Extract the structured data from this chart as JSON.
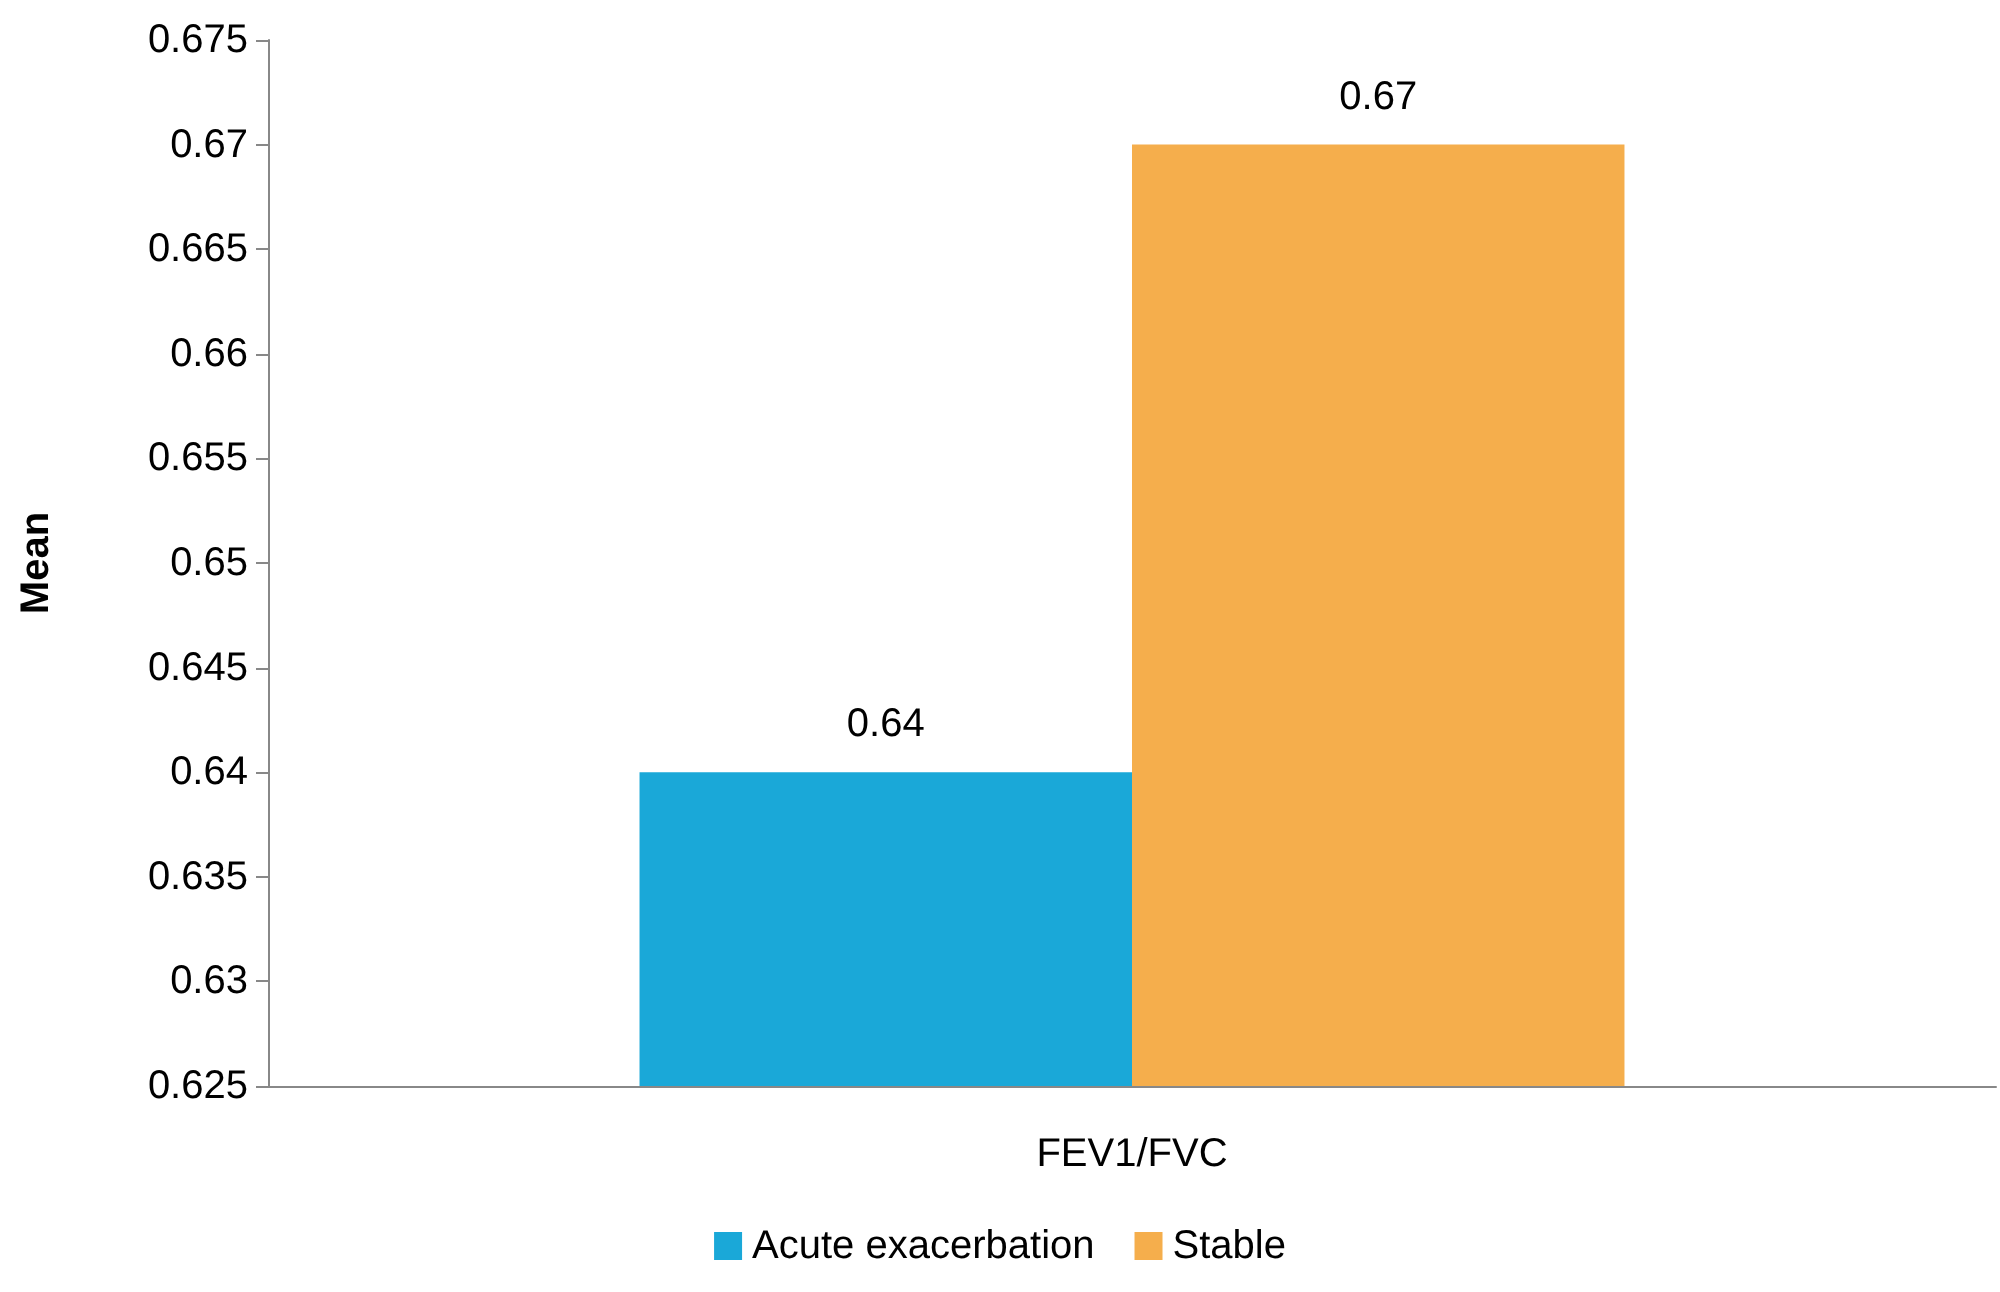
{
  "chart_data": {
    "type": "bar",
    "ylabel": "Mean",
    "categories": [
      "FEV1/FVC"
    ],
    "series": [
      {
        "name": "Acute exacerbation",
        "color": "#1aa8d8",
        "values": [
          0.64
        ]
      },
      {
        "name": "Stable",
        "color": "#f5ae4c",
        "values": [
          0.67
        ]
      }
    ],
    "ylim": [
      0.625,
      0.675
    ],
    "yticks": [
      0.625,
      0.63,
      0.635,
      0.64,
      0.645,
      0.65,
      0.655,
      0.66,
      0.665,
      0.67,
      0.675
    ],
    "grid": false,
    "legend": "bottom",
    "data_labels": true
  }
}
